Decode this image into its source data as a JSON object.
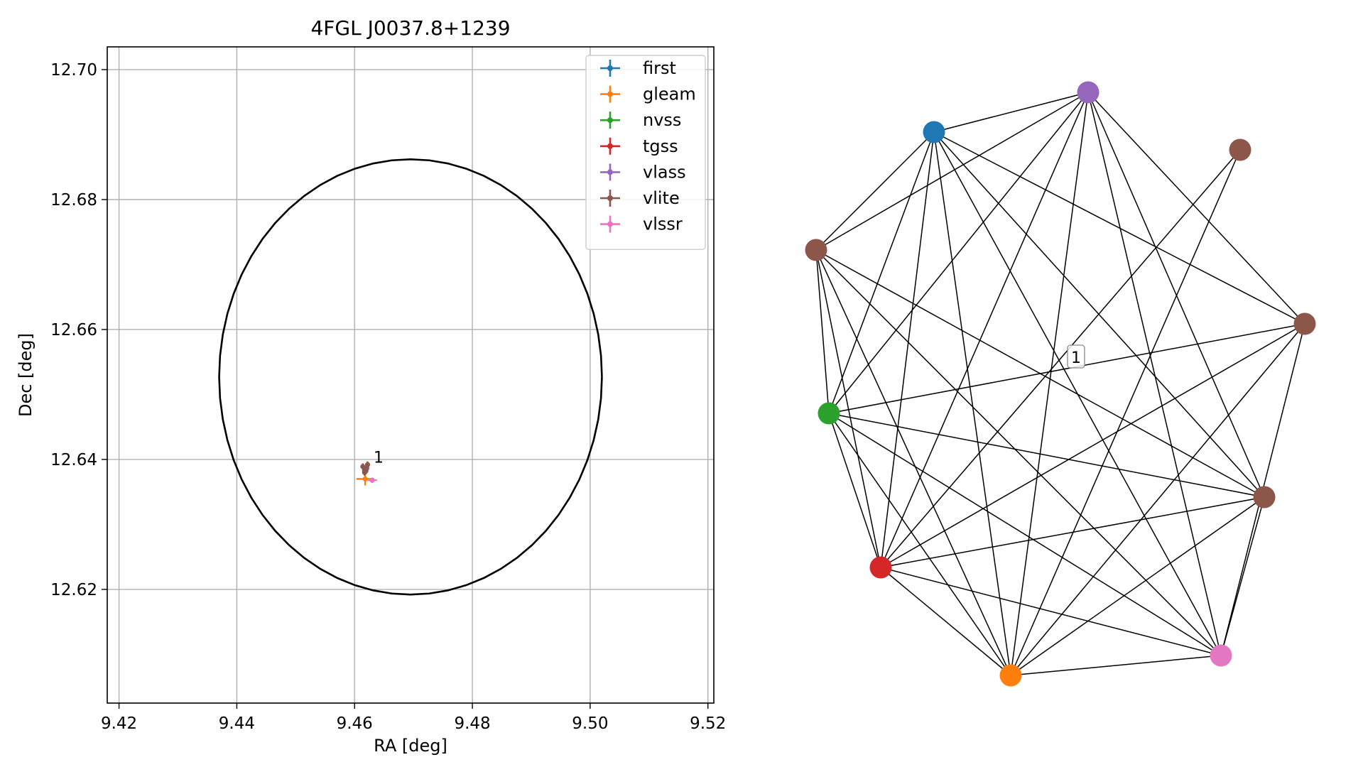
{
  "chart_data": [
    {
      "type": "scatter",
      "title": "4FGL J0037.8+1239",
      "xlabel": "RA [deg]",
      "ylabel": "Dec [deg]",
      "xlim": [
        9.418,
        9.521
      ],
      "ylim": [
        12.6025,
        12.7035
      ],
      "grid": true,
      "legend_position": "upper right",
      "x_ticks": [
        "9.42",
        "9.44",
        "9.46",
        "9.48",
        "9.50",
        "9.52"
      ],
      "y_ticks": [
        "12.62",
        "12.64",
        "12.66",
        "12.68",
        "12.70"
      ],
      "ellipse": {
        "center_x": 9.4695,
        "center_y": 12.6527,
        "semi_axis_x": 0.0325,
        "semi_axis_y": 0.0335,
        "color": "#000000"
      },
      "series": [
        {
          "name": "first",
          "color": "#1f77b4",
          "points": [
            {
              "x": 9.4617,
              "y": 12.6383,
              "xerr": 0.0002,
              "yerr": 0.0002
            }
          ]
        },
        {
          "name": "gleam",
          "color": "#ff7f0e",
          "points": [
            {
              "x": 9.4618,
              "y": 12.637,
              "xerr": 0.0015,
              "yerr": 0.001
            }
          ]
        },
        {
          "name": "nvss",
          "color": "#2ca02c",
          "points": [
            {
              "x": 9.4619,
              "y": 12.6382,
              "xerr": 0.0004,
              "yerr": 0.0004
            }
          ]
        },
        {
          "name": "tgss",
          "color": "#d62728",
          "points": [
            {
              "x": 9.462,
              "y": 12.6385,
              "xerr": 0.0004,
              "yerr": 0.0004
            }
          ]
        },
        {
          "name": "vlass",
          "color": "#9467bd",
          "points": [
            {
              "x": 9.4621,
              "y": 12.6387,
              "xerr": 0.0002,
              "yerr": 0.0002
            }
          ]
        },
        {
          "name": "vlite",
          "color": "#8c564b",
          "points": [
            {
              "x": 9.4614,
              "y": 12.6389,
              "xerr": 0.0003,
              "yerr": 0.0005
            },
            {
              "x": 9.4622,
              "y": 12.6392,
              "xerr": 0.0003,
              "yerr": 0.0005
            },
            {
              "x": 9.4619,
              "y": 12.6384,
              "xerr": 0.0003,
              "yerr": 0.0005
            },
            {
              "x": 9.4617,
              "y": 12.638,
              "xerr": 0.0003,
              "yerr": 0.0005
            }
          ]
        },
        {
          "name": "vlssr",
          "color": "#e377c2",
          "points": [
            {
              "x": 9.463,
              "y": 12.6368,
              "xerr": 0.0008,
              "yerr": 0.0004
            }
          ]
        }
      ],
      "annotations": [
        {
          "text": "1",
          "x": 9.4625,
          "y": 12.6393
        }
      ]
    },
    {
      "type": "network",
      "nodes": [
        {
          "id": "vlass",
          "color": "#9467bd"
        },
        {
          "id": "first",
          "color": "#1f77b4"
        },
        {
          "id": "vlite_a",
          "color": "#8c564b"
        },
        {
          "id": "vlite_b",
          "color": "#8c564b"
        },
        {
          "id": "vlite_c",
          "color": "#8c564b"
        },
        {
          "id": "nvss",
          "color": "#2ca02c"
        },
        {
          "id": "vlite_d",
          "color": "#8c564b"
        },
        {
          "id": "tgss",
          "color": "#d62728"
        },
        {
          "id": "vlssr",
          "color": "#e377c2"
        },
        {
          "id": "gleam",
          "color": "#ff7f0e"
        }
      ],
      "edges": [
        [
          "first",
          "vlass"
        ],
        [
          "first",
          "vlite_b"
        ],
        [
          "first",
          "nvss"
        ],
        [
          "first",
          "tgss"
        ],
        [
          "first",
          "gleam"
        ],
        [
          "first",
          "vlssr"
        ],
        [
          "first",
          "vlite_d"
        ],
        [
          "first",
          "vlite_c"
        ],
        [
          "vlass",
          "vlite_b"
        ],
        [
          "vlass",
          "nvss"
        ],
        [
          "vlass",
          "tgss"
        ],
        [
          "vlass",
          "gleam"
        ],
        [
          "vlass",
          "vlssr"
        ],
        [
          "vlass",
          "vlite_d"
        ],
        [
          "vlass",
          "vlite_c"
        ],
        [
          "vlite_a",
          "tgss"
        ],
        [
          "vlite_a",
          "gleam"
        ],
        [
          "vlite_b",
          "nvss"
        ],
        [
          "vlite_b",
          "tgss"
        ],
        [
          "vlite_b",
          "gleam"
        ],
        [
          "vlite_b",
          "vlssr"
        ],
        [
          "vlite_b",
          "vlite_d"
        ],
        [
          "vlite_c",
          "nvss"
        ],
        [
          "vlite_c",
          "tgss"
        ],
        [
          "vlite_c",
          "gleam"
        ],
        [
          "vlite_c",
          "vlssr"
        ],
        [
          "nvss",
          "vlite_d"
        ],
        [
          "nvss",
          "tgss"
        ],
        [
          "nvss",
          "gleam"
        ],
        [
          "nvss",
          "vlssr"
        ],
        [
          "vlite_d",
          "tgss"
        ],
        [
          "vlite_d",
          "gleam"
        ],
        [
          "vlite_d",
          "vlssr"
        ],
        [
          "tgss",
          "gleam"
        ],
        [
          "tgss",
          "vlssr"
        ],
        [
          "gleam",
          "vlssr"
        ]
      ],
      "label": "1"
    }
  ]
}
